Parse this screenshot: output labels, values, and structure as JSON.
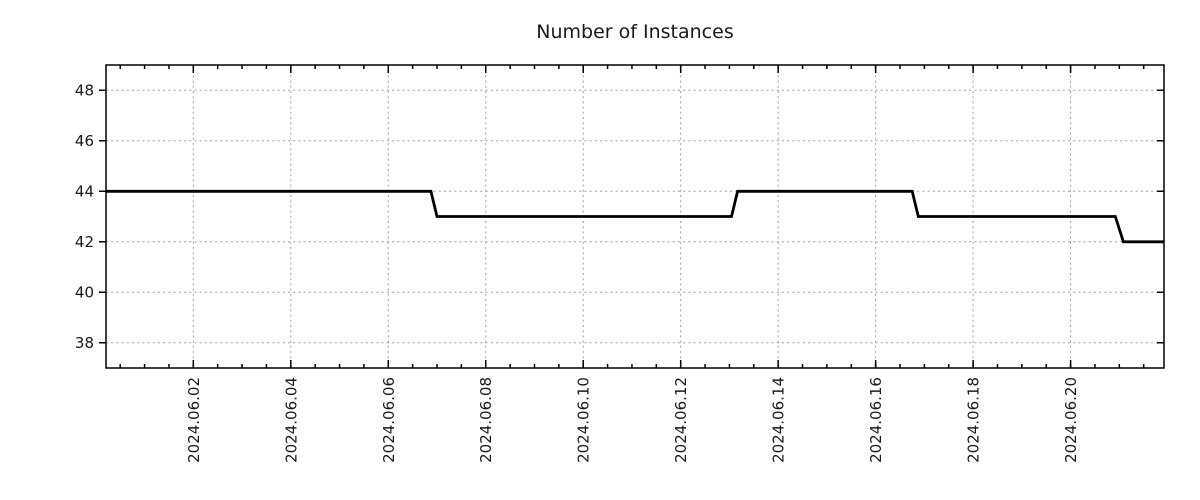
{
  "chart_data": {
    "type": "line",
    "title": "Number of Instances",
    "x_type": "datetime",
    "xlabel": "",
    "ylabel": "",
    "xlim": [
      "2024-05-31 05:00",
      "2024-06-21 22:00"
    ],
    "ylim": [
      37,
      49
    ],
    "y_ticks": [
      38,
      40,
      42,
      44,
      46,
      48
    ],
    "x_major_ticks": [
      {
        "t": "2024-06-02",
        "label": "2024.06.02"
      },
      {
        "t": "2024-06-04",
        "label": "2024.06.04"
      },
      {
        "t": "2024-06-06",
        "label": "2024.06.06"
      },
      {
        "t": "2024-06-08",
        "label": "2024.06.08"
      },
      {
        "t": "2024-06-10",
        "label": "2024.06.10"
      },
      {
        "t": "2024-06-12",
        "label": "2024.06.12"
      },
      {
        "t": "2024-06-14",
        "label": "2024.06.14"
      },
      {
        "t": "2024-06-16",
        "label": "2024.06.16"
      },
      {
        "t": "2024-06-18",
        "label": "2024.06.18"
      },
      {
        "t": "2024-06-20",
        "label": "2024.06.20"
      }
    ],
    "x_minor_interval_hours": 12,
    "grid": true,
    "legend": "none",
    "colors": {
      "line": "#000000",
      "grid": "#9e9e9e",
      "axis": "#000000",
      "text": "#1a1a1a",
      "background": "#ffffff"
    },
    "series": [
      {
        "name": "instances",
        "points": [
          {
            "t": "2024-05-31 05:00",
            "v": 44
          },
          {
            "t": "2024-06-06 21:00",
            "v": 44
          },
          {
            "t": "2024-06-07 00:00",
            "v": 43
          },
          {
            "t": "2024-06-13 01:00",
            "v": 43
          },
          {
            "t": "2024-06-13 04:00",
            "v": 44
          },
          {
            "t": "2024-06-16 18:00",
            "v": 44
          },
          {
            "t": "2024-06-16 21:00",
            "v": 43
          },
          {
            "t": "2024-06-20 22:00",
            "v": 43
          },
          {
            "t": "2024-06-21 02:00",
            "v": 42
          },
          {
            "t": "2024-06-21 22:00",
            "v": 42
          }
        ]
      }
    ]
  }
}
